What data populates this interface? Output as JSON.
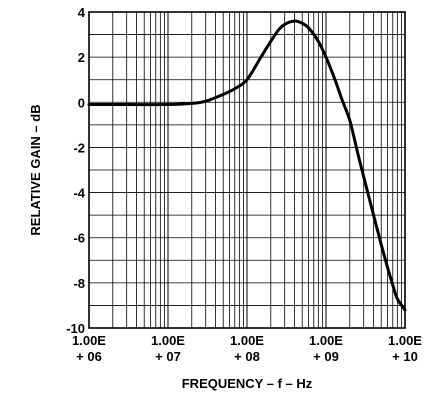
{
  "chart_data": {
    "type": "line",
    "xlabel": "FREQUENCY – f – Hz",
    "ylabel": "RELATIVE GAIN – dB",
    "x_scale": "log",
    "xlim": [
      1000000,
      10000000000
    ],
    "ylim": [
      -10,
      4
    ],
    "grid": true,
    "x_ticks": [
      {
        "value": 1000000,
        "line1": "1.00E",
        "line2": "+ 06"
      },
      {
        "value": 10000000,
        "line1": "1.00E",
        "line2": "+ 07"
      },
      {
        "value": 100000000,
        "line1": "1.00E",
        "line2": "+ 08"
      },
      {
        "value": 1000000000,
        "line1": "1.00E",
        "line2": "+ 09"
      },
      {
        "value": 10000000000,
        "line1": "1.00E",
        "line2": "+ 10"
      }
    ],
    "y_ticks": [
      4,
      2,
      0,
      -2,
      -4,
      -6,
      -8,
      -10
    ],
    "series": [
      {
        "x": [
          1000000,
          3000000,
          10000000,
          20000000,
          30000000,
          50000000,
          70000000,
          100000000,
          150000000,
          200000000,
          250000000,
          300000000,
          400000000,
          500000000,
          600000000,
          800000000,
          1000000000,
          1300000000,
          1600000000,
          2000000000,
          2500000000,
          3000000000,
          4000000000,
          5000000000,
          6000000000,
          7000000000,
          8000000000,
          10000000000
        ],
        "y": [
          -0.1,
          -0.1,
          -0.1,
          -0.05,
          0.05,
          0.35,
          0.6,
          1.0,
          2.0,
          2.7,
          3.2,
          3.45,
          3.6,
          3.5,
          3.3,
          2.7,
          2.0,
          1.0,
          0.1,
          -0.8,
          -2.2,
          -3.3,
          -5.0,
          -6.3,
          -7.3,
          -8.1,
          -8.7,
          -9.2
        ]
      }
    ]
  }
}
